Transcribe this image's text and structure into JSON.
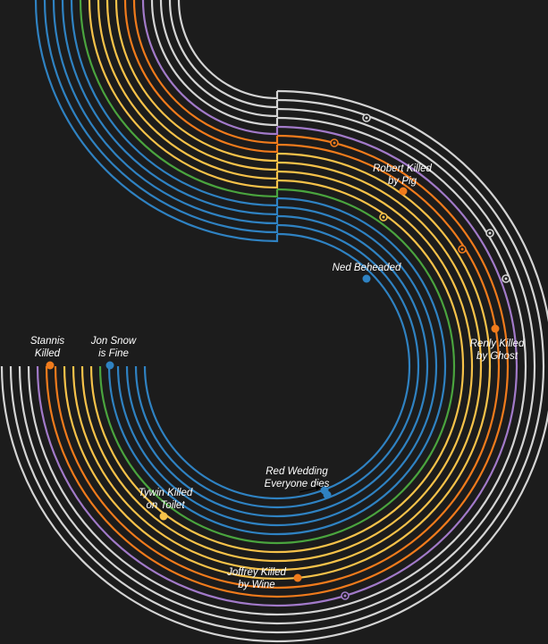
{
  "colors": {
    "background": "#1c1c1c",
    "stark": "#2f82c2",
    "tully": "#4aa43e",
    "lannister": "#f6c24a",
    "baratheon": "#f07b1c",
    "targaryen": "#a27ac9",
    "other": "#d4d4d4"
  },
  "events": {
    "ned": "Ned Beheaded",
    "robert_1": "Robert Killed",
    "robert_2": "by Pig",
    "renly_1": "Renly Killed",
    "renly_2": "by Ghost",
    "stannis_1": "Stannis",
    "stannis_2": "Killed",
    "jon_1": "Jon Snow",
    "jon_2": "is Fine",
    "redwed_1": "Red Wedding",
    "redwed_2": "Everyone dies",
    "tywin_1": "Tywin Killed",
    "tywin_2": "on Toilet",
    "joffrey_1": "Joffrey Killed",
    "joffrey_2": "by Wine"
  }
}
